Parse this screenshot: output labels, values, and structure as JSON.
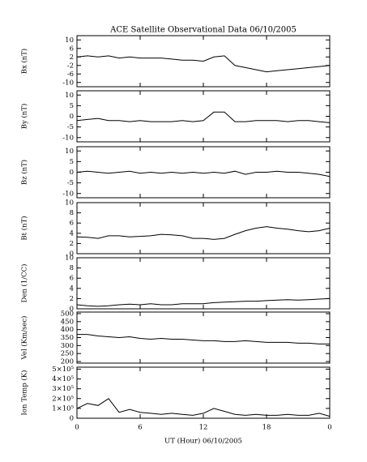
{
  "chart_data": [
    {
      "type": "line",
      "title": "ACE Satellite Observational Data   06/10/2005",
      "ylabel": "Bx (nT)",
      "x": [
        0,
        1,
        2,
        3,
        4,
        5,
        6,
        7,
        8,
        9,
        10,
        11,
        12,
        13,
        14,
        15,
        16,
        17,
        18,
        19,
        20,
        21,
        22,
        23,
        24
      ],
      "values": [
        2,
        2.5,
        2,
        2.5,
        1.5,
        2,
        1.5,
        1.5,
        1.5,
        1,
        0.5,
        0.5,
        0,
        2,
        2.5,
        -2,
        -3,
        -4,
        -5,
        -4.5,
        -4,
        -3.5,
        -3,
        -2.5,
        -2
      ],
      "xlim": [
        0,
        24
      ],
      "xticks": [
        0,
        6,
        12,
        18,
        {
          "value": 24,
          "label": "0"
        }
      ],
      "ylim": [
        -12,
        12
      ],
      "yticks": [
        -10,
        -6,
        -2,
        2,
        6,
        10
      ],
      "color": "#000000"
    },
    {
      "type": "line",
      "ylabel": "By (nT)",
      "x": [
        0,
        1,
        2,
        3,
        4,
        5,
        6,
        7,
        8,
        9,
        10,
        11,
        12,
        13,
        14,
        15,
        16,
        17,
        18,
        19,
        20,
        21,
        22,
        23,
        24
      ],
      "values": [
        -2,
        -1.5,
        -1,
        -2,
        -2,
        -2.5,
        -2,
        -2.5,
        -2.5,
        -2.5,
        -2,
        -2.5,
        -2,
        2,
        2,
        -2.5,
        -2.5,
        -2,
        -2,
        -2,
        -2.5,
        -2,
        -2,
        -2.5,
        -3
      ],
      "xlim": [
        0,
        24
      ],
      "xticks": [
        0,
        6,
        12,
        18,
        {
          "value": 24,
          "label": "0"
        }
      ],
      "ylim": [
        -12,
        12
      ],
      "yticks": [
        -10,
        -5,
        0,
        5,
        10
      ],
      "color": "#000000"
    },
    {
      "type": "line",
      "ylabel": "Bz (nT)",
      "x": [
        0,
        1,
        2,
        3,
        4,
        5,
        6,
        7,
        8,
        9,
        10,
        11,
        12,
        13,
        14,
        15,
        16,
        17,
        18,
        19,
        20,
        21,
        22,
        23,
        24
      ],
      "values": [
        0,
        0.5,
        0,
        -0.5,
        0,
        0.5,
        -0.5,
        0,
        -0.5,
        0,
        -0.5,
        0,
        -0.5,
        0,
        -0.5,
        0.5,
        -1,
        0,
        0,
        0.5,
        0,
        0,
        -0.5,
        -1,
        -2
      ],
      "xlim": [
        0,
        24
      ],
      "xticks": [
        0,
        6,
        12,
        18,
        {
          "value": 24,
          "label": "0"
        }
      ],
      "ylim": [
        -12,
        12
      ],
      "yticks": [
        -10,
        -5,
        0,
        5,
        10
      ],
      "color": "#000000"
    },
    {
      "type": "line",
      "ylabel": "Bt (nT)",
      "x": [
        0,
        1,
        2,
        3,
        4,
        5,
        6,
        7,
        8,
        9,
        10,
        11,
        12,
        13,
        14,
        15,
        16,
        17,
        18,
        19,
        20,
        21,
        22,
        23,
        24
      ],
      "values": [
        3.3,
        3.2,
        3,
        3.5,
        3.5,
        3.3,
        3.4,
        3.5,
        3.8,
        3.7,
        3.5,
        3,
        3,
        2.8,
        3,
        3.8,
        4.5,
        5,
        5.3,
        5,
        4.8,
        4.5,
        4.3,
        4.5,
        5
      ],
      "xlim": [
        0,
        24
      ],
      "xticks": [
        0,
        6,
        12,
        18,
        {
          "value": 24,
          "label": "0"
        }
      ],
      "ylim": [
        0,
        10
      ],
      "yticks": [
        0,
        2,
        4,
        6,
        8,
        10
      ],
      "color": "#000000"
    },
    {
      "type": "line",
      "ylabel": "Den (1/CC)",
      "x": [
        0,
        1,
        2,
        3,
        4,
        5,
        6,
        7,
        8,
        9,
        10,
        11,
        12,
        13,
        14,
        15,
        16,
        17,
        18,
        19,
        20,
        21,
        22,
        23,
        24
      ],
      "values": [
        0.8,
        0.6,
        0.5,
        0.6,
        0.8,
        0.9,
        0.8,
        1,
        0.8,
        0.8,
        1,
        1,
        1,
        1.2,
        1.3,
        1.4,
        1.5,
        1.5,
        1.6,
        1.7,
        1.8,
        1.7,
        1.8,
        1.9,
        2
      ],
      "xlim": [
        0,
        24
      ],
      "xticks": [
        0,
        6,
        12,
        18,
        {
          "value": 24,
          "label": "0"
        }
      ],
      "ylim": [
        0,
        10
      ],
      "yticks": [
        0,
        2,
        4,
        6,
        8,
        10
      ],
      "color": "#000000"
    },
    {
      "type": "line",
      "ylabel": "Vel (Km/sec)",
      "x": [
        0,
        1,
        2,
        3,
        4,
        5,
        6,
        7,
        8,
        9,
        10,
        11,
        12,
        13,
        14,
        15,
        16,
        17,
        18,
        19,
        20,
        21,
        22,
        23,
        24
      ],
      "values": [
        370,
        370,
        360,
        355,
        350,
        355,
        345,
        340,
        345,
        340,
        340,
        335,
        330,
        330,
        325,
        325,
        330,
        325,
        320,
        320,
        320,
        315,
        315,
        310,
        310
      ],
      "xlim": [
        0,
        24
      ],
      "xticks": [
        0,
        6,
        12,
        18,
        {
          "value": 24,
          "label": "0"
        }
      ],
      "ylim": [
        190,
        510
      ],
      "yticks": [
        200,
        250,
        300,
        350,
        400,
        450,
        500
      ],
      "color": "#000000"
    },
    {
      "type": "line",
      "ylabel": "Ion Temp (K)",
      "xlabel": "UT (Hour)   06/10/2005",
      "x": [
        0,
        1,
        2,
        3,
        4,
        5,
        6,
        7,
        8,
        9,
        10,
        11,
        12,
        13,
        14,
        15,
        16,
        17,
        18,
        19,
        20,
        21,
        22,
        23,
        24
      ],
      "values": [
        100000,
        150000,
        130000,
        200000,
        60000,
        90000,
        60000,
        50000,
        40000,
        50000,
        40000,
        30000,
        50000,
        100000,
        70000,
        40000,
        30000,
        40000,
        30000,
        30000,
        40000,
        30000,
        30000,
        50000,
        20000
      ],
      "xlim": [
        0,
        24
      ],
      "xticks": [
        0,
        6,
        12,
        18,
        {
          "value": 24,
          "label": "0"
        }
      ],
      "ylim": [
        0,
        520000
      ],
      "yticks": [
        0,
        {
          "value": 100000,
          "label": "1×10⁵"
        },
        {
          "value": 200000,
          "label": "2×10⁵"
        },
        {
          "value": 300000,
          "label": "3×10⁵"
        },
        {
          "value": 400000,
          "label": "4×10⁵"
        },
        {
          "value": 500000,
          "label": "5×10⁵"
        }
      ],
      "color": "#000000"
    }
  ]
}
